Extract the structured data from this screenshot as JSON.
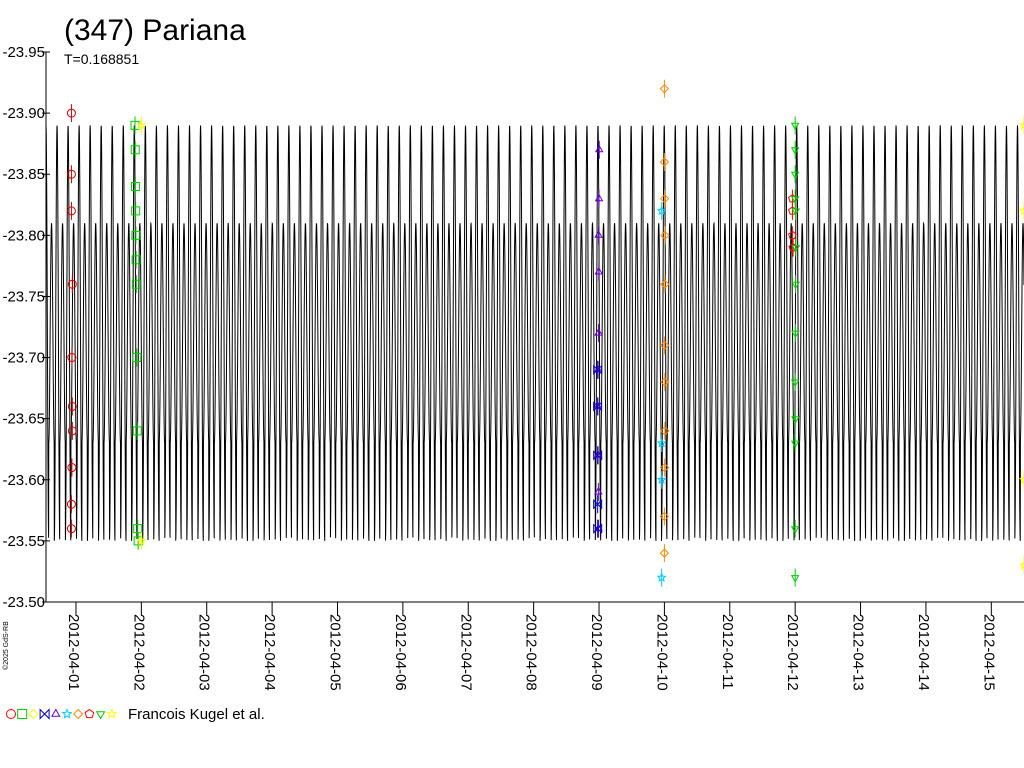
{
  "chart_data": {
    "type": "line",
    "title": "(347) Pariana",
    "subtitle": "T=0.168851",
    "xlabel": "",
    "ylabel": "",
    "ylim": [
      -23.5,
      -23.95
    ],
    "y_inverted": true,
    "xlim_days": [
      "2012-03-31T13:00",
      "2012-04-15T12:00"
    ],
    "x_ticks": [
      "2012-04-01",
      "2012-04-02",
      "2012-04-03",
      "2012-04-04",
      "2012-04-05",
      "2012-04-06",
      "2012-04-07",
      "2012-04-08",
      "2012-04-09",
      "2012-04-10",
      "2012-04-11",
      "2012-04-12",
      "2012-04-13",
      "2012-04-14",
      "2012-04-15"
    ],
    "y_ticks": [
      "-23.95",
      "-23.90",
      "-23.85",
      "-23.80",
      "-23.75",
      "-23.70",
      "-23.65",
      "-23.60",
      "-23.55",
      "-23.50"
    ],
    "model": {
      "period_days": 0.168851,
      "max_mag": -23.89,
      "min_mag": -23.55,
      "secondary_max_mag": -23.81,
      "color": "#000000"
    },
    "grid": false,
    "legend_text": "Francois Kugel et al.",
    "legend_symbols": [
      {
        "shape": "circle",
        "color": "#ff0000"
      },
      {
        "shape": "square",
        "color": "#00cc00"
      },
      {
        "shape": "diamond",
        "color": "#ffff00"
      },
      {
        "shape": "hourglass",
        "color": "#0000cc"
      },
      {
        "shape": "triangle",
        "color": "#6600cc"
      },
      {
        "shape": "star",
        "color": "#00ccff"
      },
      {
        "shape": "diamond",
        "color": "#ff8800"
      },
      {
        "shape": "pentagon",
        "color": "#ff0000"
      },
      {
        "shape": "triangle-down",
        "color": "#00cc00"
      },
      {
        "shape": "star",
        "color": "#ffff00"
      }
    ],
    "copyright": "©2025 GdS-RB",
    "series": [
      {
        "shape": "circle",
        "color": "#cc0000",
        "points": [
          [
            "2012-03-31T22:20",
            -23.9
          ],
          [
            "2012-03-31T22:20",
            -23.85
          ],
          [
            "2012-03-31T22:20",
            -23.82
          ],
          [
            "2012-03-31T22:40",
            -23.76
          ],
          [
            "2012-03-31T22:30",
            -23.7
          ],
          [
            "2012-03-31T22:40",
            -23.66
          ],
          [
            "2012-03-31T22:40",
            -23.64
          ],
          [
            "2012-03-31T22:30",
            -23.61
          ],
          [
            "2012-03-31T22:20",
            -23.58
          ],
          [
            "2012-03-31T22:20",
            -23.56
          ]
        ]
      },
      {
        "shape": "square",
        "color": "#00cc00",
        "points": [
          [
            "2012-04-01T21:40",
            -23.89
          ],
          [
            "2012-04-01T21:45",
            -23.87
          ],
          [
            "2012-04-01T21:50",
            -23.84
          ],
          [
            "2012-04-01T21:55",
            -23.82
          ],
          [
            "2012-04-01T22:00",
            -23.8
          ],
          [
            "2012-04-01T22:05",
            -23.78
          ],
          [
            "2012-04-01T22:10",
            -23.76
          ],
          [
            "2012-04-01T22:20",
            -23.7
          ],
          [
            "2012-04-01T22:30",
            -23.64
          ],
          [
            "2012-04-01T22:40",
            -23.56
          ],
          [
            "2012-04-01T22:50",
            -23.55
          ]
        ]
      },
      {
        "shape": "star",
        "color": "#ffff00",
        "points": [
          [
            "2012-04-02T00:00",
            -23.89
          ],
          [
            "2012-04-02T00:00",
            -23.55
          ],
          [
            "2012-04-15T12:00",
            -23.89
          ],
          [
            "2012-04-15T12:00",
            -23.82
          ],
          [
            "2012-04-15T12:00",
            -23.6
          ],
          [
            "2012-04-15T12:00",
            -23.53
          ]
        ]
      },
      {
        "shape": "triangle",
        "color": "#6600cc",
        "points": [
          [
            "2012-04-09T00:05",
            -23.87
          ],
          [
            "2012-04-09T00:00",
            -23.83
          ],
          [
            "2012-04-08T23:50",
            -23.8
          ],
          [
            "2012-04-08T23:55",
            -23.77
          ],
          [
            "2012-04-08T23:50",
            -23.72
          ],
          [
            "2012-04-08T23:40",
            -23.69
          ],
          [
            "2012-04-08T23:35",
            -23.66
          ],
          [
            "2012-04-08T23:40",
            -23.62
          ],
          [
            "2012-04-08T23:45",
            -23.59
          ],
          [
            "2012-04-08T23:50",
            -23.56
          ]
        ]
      },
      {
        "shape": "hourglass",
        "color": "#0000cc",
        "points": [
          [
            "2012-04-08T23:30",
            -23.69
          ],
          [
            "2012-04-08T23:30",
            -23.66
          ],
          [
            "2012-04-08T23:30",
            -23.62
          ],
          [
            "2012-04-08T23:30",
            -23.58
          ],
          [
            "2012-04-08T23:30",
            -23.56
          ]
        ]
      },
      {
        "shape": "star",
        "color": "#00ccff",
        "points": [
          [
            "2012-04-09T23:00",
            -23.82
          ],
          [
            "2012-04-09T23:00",
            -23.63
          ],
          [
            "2012-04-09T23:00",
            -23.6
          ],
          [
            "2012-04-09T23:00",
            -23.52
          ]
        ]
      },
      {
        "shape": "diamond",
        "color": "#ff8800",
        "points": [
          [
            "2012-04-10T00:00",
            -23.92
          ],
          [
            "2012-04-10T00:00",
            -23.86
          ],
          [
            "2012-04-10T00:05",
            -23.83
          ],
          [
            "2012-04-10T00:10",
            -23.8
          ],
          [
            "2012-04-10T00:10",
            -23.76
          ],
          [
            "2012-04-10T00:05",
            -23.71
          ],
          [
            "2012-04-10T00:10",
            -23.68
          ],
          [
            "2012-04-10T00:10",
            -23.64
          ],
          [
            "2012-04-10T00:05",
            -23.61
          ],
          [
            "2012-04-10T00:00",
            -23.57
          ],
          [
            "2012-04-10T00:00",
            -23.54
          ]
        ]
      },
      {
        "shape": "pentagon",
        "color": "#ff0000",
        "points": [
          [
            "2012-04-11T23:00",
            -23.83
          ],
          [
            "2012-04-11T23:00",
            -23.82
          ],
          [
            "2012-04-11T23:00",
            -23.8
          ],
          [
            "2012-04-11T23:10",
            -23.79
          ],
          [
            "2012-04-11T23:15",
            -23.79
          ]
        ]
      },
      {
        "shape": "triangle-down",
        "color": "#00cc00",
        "points": [
          [
            "2012-04-12T00:00",
            -23.89
          ],
          [
            "2012-04-12T00:00",
            -23.87
          ],
          [
            "2012-04-12T00:00",
            -23.85
          ],
          [
            "2012-04-12T00:00",
            -23.83
          ],
          [
            "2012-04-12T00:10",
            -23.82
          ],
          [
            "2012-04-12T00:15",
            -23.79
          ],
          [
            "2012-04-12T00:10",
            -23.76
          ],
          [
            "2012-04-12T00:05",
            -23.72
          ],
          [
            "2012-04-12T00:00",
            -23.68
          ],
          [
            "2012-04-12T00:05",
            -23.65
          ],
          [
            "2012-04-12T00:00",
            -23.63
          ],
          [
            "2012-04-12T00:00",
            -23.56
          ],
          [
            "2012-04-12T00:00",
            -23.52
          ]
        ]
      }
    ]
  }
}
